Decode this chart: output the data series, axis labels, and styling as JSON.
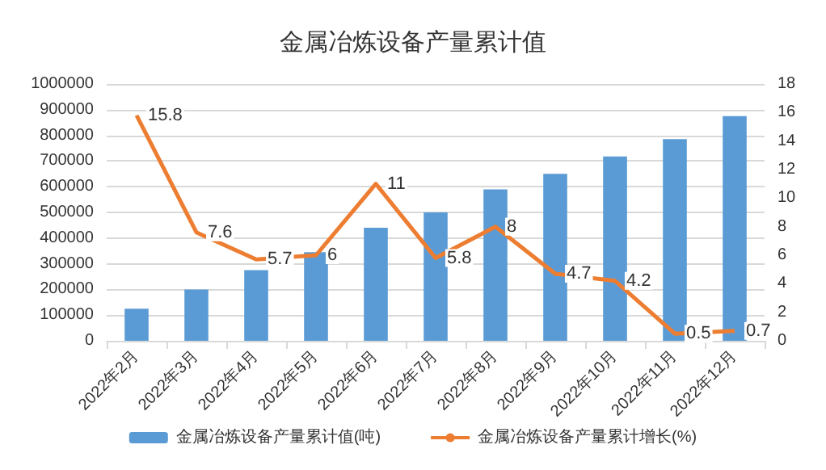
{
  "chart_data": {
    "type": "bar",
    "title": "金属冶炼设备产量累计值",
    "categories": [
      "2022年2月",
      "2022年3月",
      "2022年4月",
      "2022年5月",
      "2022年6月",
      "2022年7月",
      "2022年8月",
      "2022年9月",
      "2022年10月",
      "2022年11月",
      "2022年12月"
    ],
    "series": [
      {
        "name": "金属冶炼设备产量累计值(吨)",
        "color": "#5b9bd5",
        "values": [
          125000,
          200000,
          275000,
          345000,
          440000,
          500000,
          590000,
          650000,
          718000,
          785000,
          875000
        ]
      },
      {
        "name": "金属冶炼设备产量累计增长(%)",
        "color": "#ed7d31",
        "type": "line",
        "axis": "y2",
        "data_labels": true,
        "values": [
          15.8,
          7.6,
          5.7,
          6,
          11,
          5.8,
          8,
          4.7,
          4.2,
          0.5,
          0.7
        ]
      }
    ],
    "ylim": [
      0,
      1000000
    ],
    "yticks": [
      0,
      100000,
      200000,
      300000,
      400000,
      500000,
      600000,
      700000,
      800000,
      900000,
      1000000
    ],
    "y2lim": [
      0,
      18
    ],
    "y2ticks": [
      0,
      2,
      4,
      6,
      8,
      10,
      12,
      14,
      16,
      18
    ],
    "grid": "y",
    "legend": "bottom",
    "marker": "none"
  }
}
